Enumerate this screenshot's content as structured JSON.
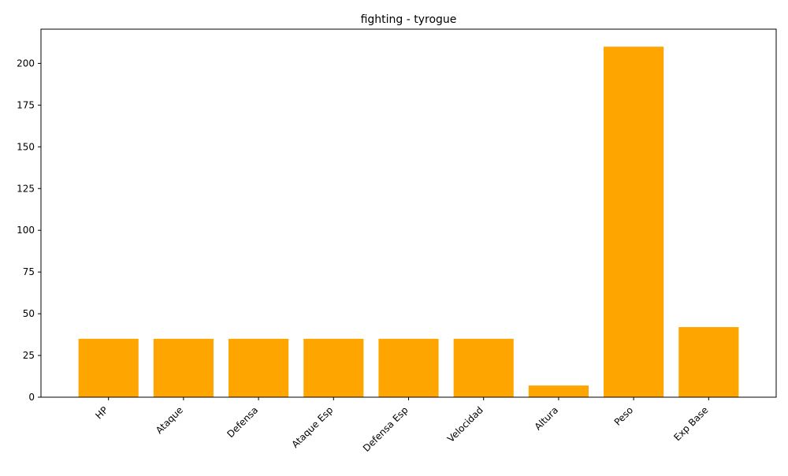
{
  "chart_data": {
    "type": "bar",
    "title": "fighting - tyrogue",
    "xlabel": "",
    "ylabel": "",
    "categories": [
      "HP",
      "Ataque",
      "Defensa",
      "Ataque Esp",
      "Defensa Esp",
      "Velocidad",
      "Altura",
      "Peso",
      "Exp Base"
    ],
    "values": [
      35,
      35,
      35,
      35,
      35,
      35,
      7,
      210,
      42
    ],
    "ylim": [
      0,
      220.5
    ],
    "yticks": [
      0,
      25,
      50,
      75,
      100,
      125,
      150,
      175,
      200
    ],
    "bar_color": "#ffa500",
    "grid": false,
    "legend": "none"
  }
}
